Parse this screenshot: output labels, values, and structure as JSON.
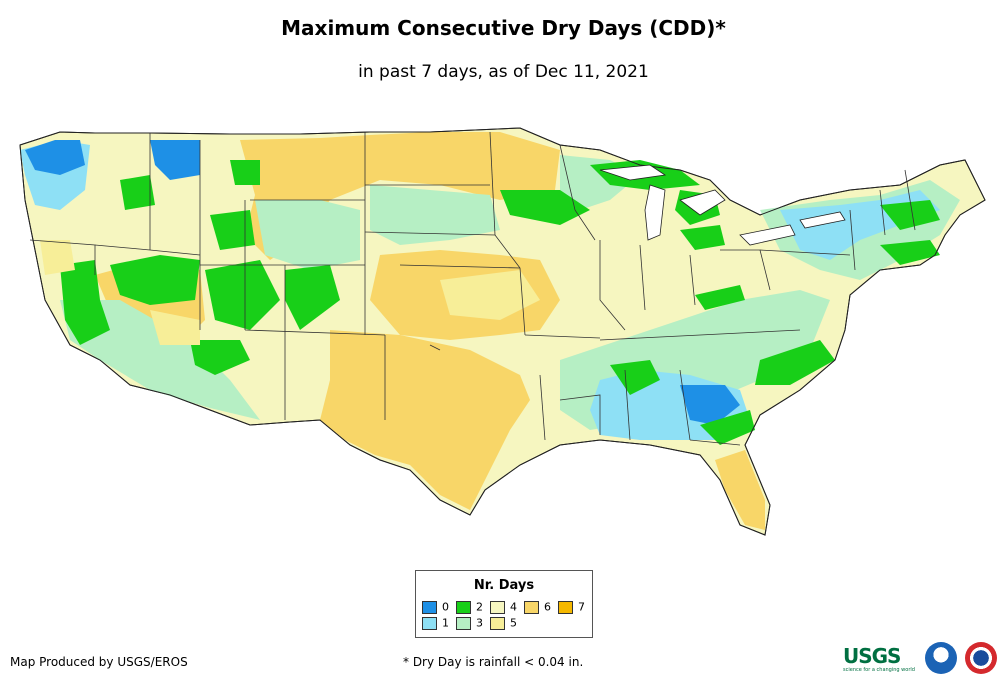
{
  "title": "Maximum Consecutive Dry Days (CDD)*",
  "subtitle": "in past 7 days, as of Dec 11, 2021",
  "legend": {
    "title": "Nr. Days",
    "items": [
      {
        "label": "0",
        "color": "#1e90e6"
      },
      {
        "label": "1",
        "color": "#8ee0f5"
      },
      {
        "label": "2",
        "color": "#18cf18"
      },
      {
        "label": "3",
        "color": "#b6efc4"
      },
      {
        "label": "4",
        "color": "#f6f6c0"
      },
      {
        "label": "5",
        "color": "#f7ee98"
      },
      {
        "label": "6",
        "color": "#f8d668"
      },
      {
        "label": "7",
        "color": "#f5b800"
      }
    ]
  },
  "footer": {
    "producer": "Map Produced by USGS/EROS",
    "note": "* Dry Day is rainfall < 0.04 in."
  },
  "logos": {
    "usgs": "USGS",
    "usgs_tagline": "science for a changing world",
    "noaa": "noaa-logo",
    "nws": "nws-logo"
  }
}
